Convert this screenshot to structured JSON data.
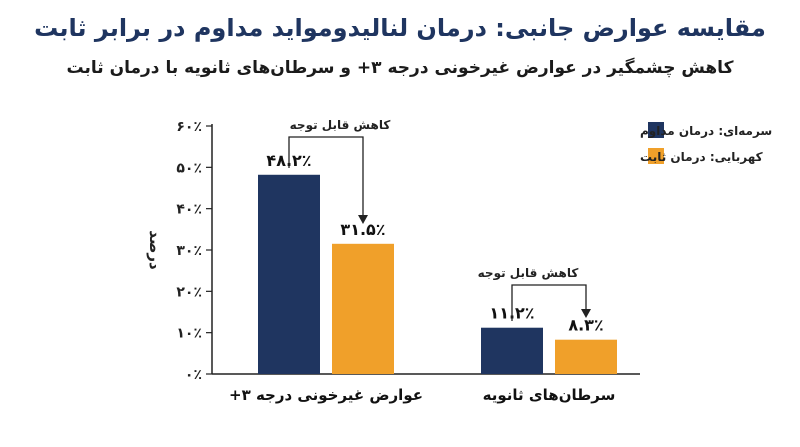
{
  "header": {
    "title": "مقایسه عوارض جانبی: درمان لنالیدومواید مداوم در برابر ثابت",
    "subtitle": "کاهش چشمگیر در عوارض غیرخونی درجه ۳+ و سرطان‌های ثانویه با درمان ثابت"
  },
  "chart_data": {
    "type": "bar",
    "categories": [
      "عوارض غیرخونی درجه ۳+",
      "سرطان‌های ثانویه"
    ],
    "series": [
      {
        "name": "سرمه‌ای: درمان مداوم",
        "values": [
          48.2,
          11.2
        ],
        "labels": [
          "۴۸.۲٪",
          "۱۱.۲٪"
        ],
        "color": "#1f3560"
      },
      {
        "name": "کهربایی: درمان ثابت",
        "values": [
          31.5,
          8.3
        ],
        "labels": [
          "۳۱.۵٪",
          "۸.۳٪"
        ],
        "color": "#f0a02a"
      }
    ],
    "ylabel": "درصد",
    "ylim": [
      0,
      60
    ],
    "yticks": [
      0,
      10,
      20,
      30,
      40,
      50,
      60
    ],
    "ytick_labels": [
      "۰٪",
      "۱۰٪",
      "۲۰٪",
      "۳۰٪",
      "۴۰٪",
      "۵۰٪",
      "۶۰٪"
    ],
    "annotations": [
      "کاهش قابل توجه",
      "کاهش قابل توجه"
    ],
    "legend_position": "right",
    "grid": false
  }
}
